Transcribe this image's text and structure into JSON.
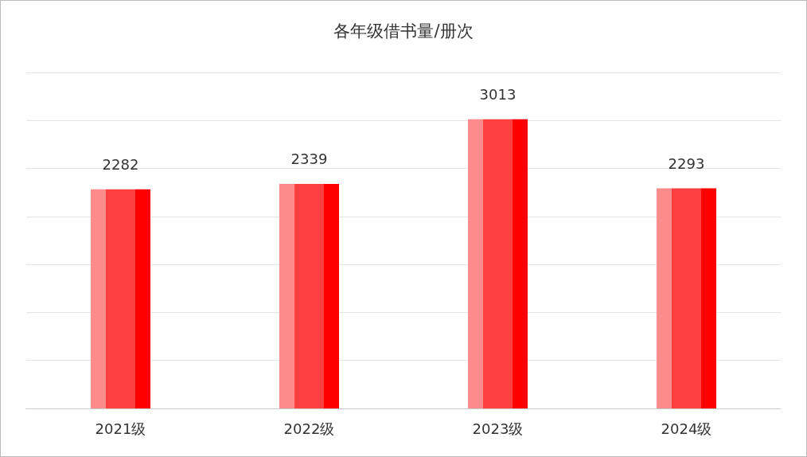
{
  "chart_data": {
    "type": "bar",
    "title": "各年级借书量/册次",
    "categories": [
      "2021级",
      "2022级",
      "2023级",
      "2024级"
    ],
    "values": [
      2282,
      2339,
      3013,
      2293
    ],
    "color": "#ff4040",
    "ylim": [
      0,
      3500
    ],
    "yticks": [
      {
        "value": 0,
        "label": null
      },
      {
        "value": 500,
        "label": null
      },
      {
        "value": 1000,
        "label": null
      },
      {
        "value": 1500,
        "label": null
      },
      {
        "value": 2000,
        "label": null
      },
      {
        "value": 2500,
        "label": null
      },
      {
        "value": 3000,
        "label": null
      },
      {
        "value": 3500,
        "label": null
      }
    ],
    "tick_labels": "x",
    "grid": "y",
    "data_labels": true
  }
}
